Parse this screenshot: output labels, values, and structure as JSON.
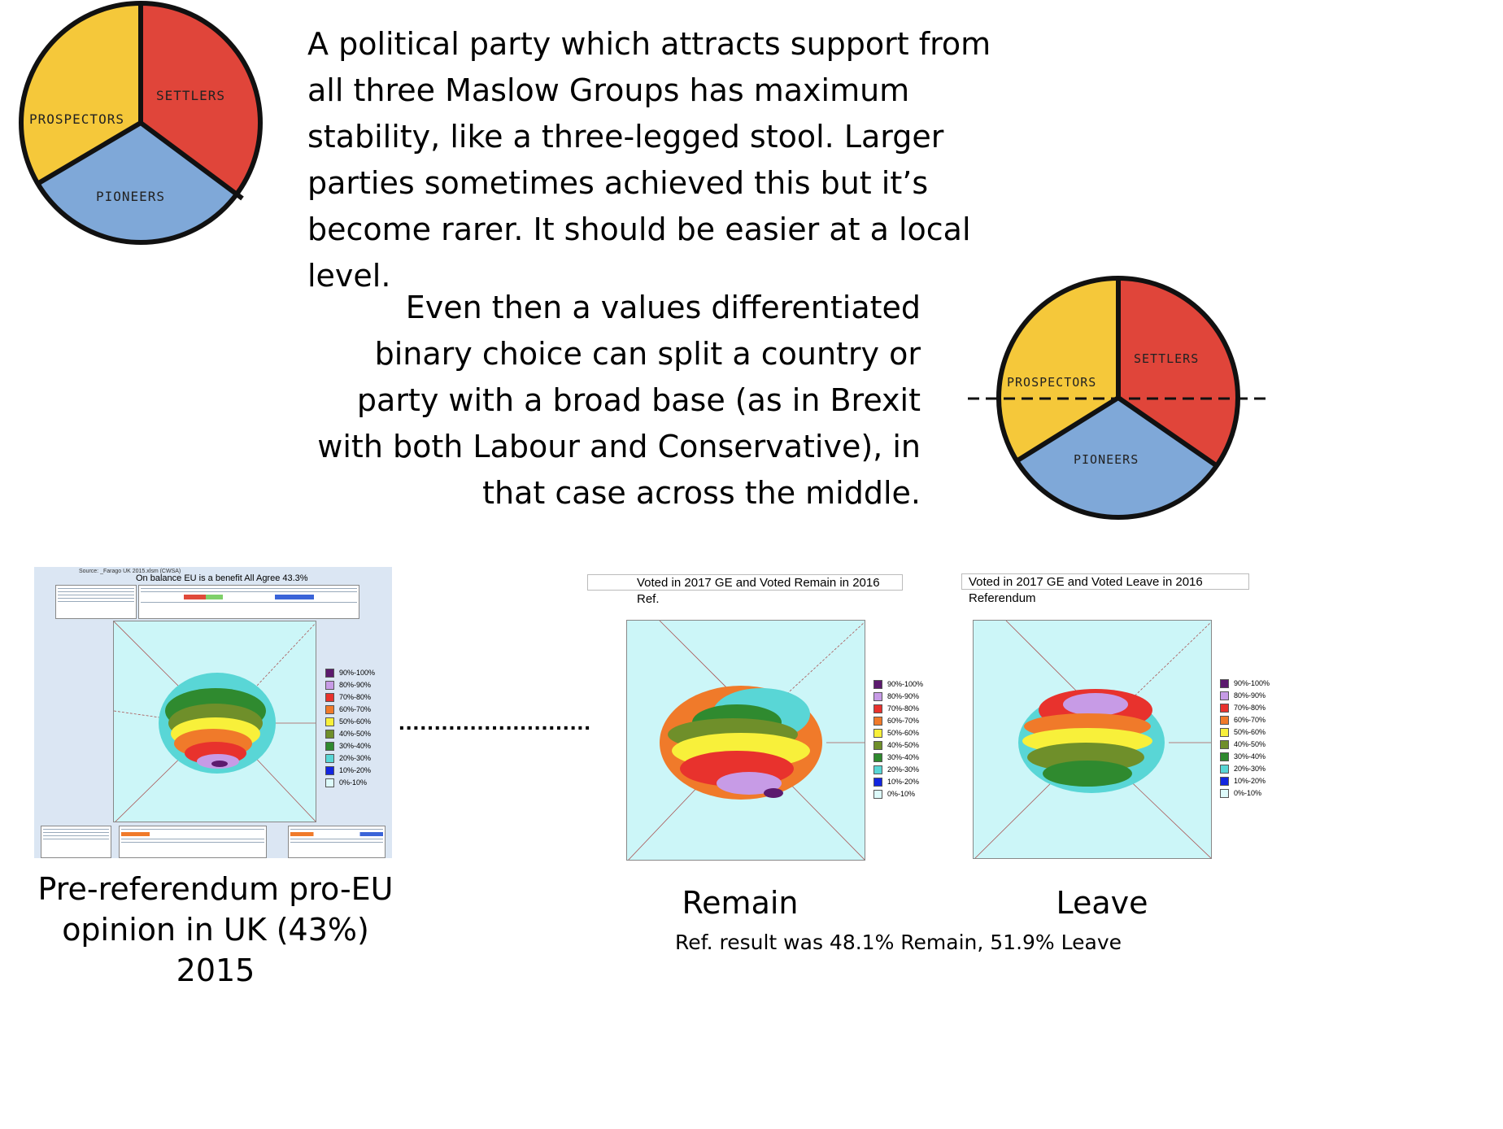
{
  "pie": {
    "labels": {
      "prospectors": "PROSPECTORS",
      "settlers": "SETTLERS",
      "pioneers": "PIONEERS"
    },
    "colors": {
      "prospectors": "#f5c83a",
      "settlers": "#e0453a",
      "pioneers": "#7fa8d8"
    }
  },
  "text": {
    "para1": "A political party which attracts support from all three Maslow Groups has maximum stability, like a three-legged stool.  Larger parties sometimes achieved this but it’s become rarer.  It should be easier at a local level.",
    "para2": "Even then a values differentiated binary choice can split a country or party with a broad base (as in Brexit with both Labour and Conservative), in that case across the middle."
  },
  "panels": {
    "left": {
      "source": "Source: _Farago UK 2015.xlsm (CWSA)",
      "title": "On balance EU is a benefit All Agree 43.3%",
      "caption": "Pre-referendum pro-EU opinion in UK (43%) 2015"
    },
    "remain": {
      "title": "Voted in 2017 GE and Voted Remain in 2016 Ref.",
      "caption": "Remain"
    },
    "leave": {
      "title": "Voted in 2017 GE and Voted Leave in 2016 Referendum",
      "caption": "Leave"
    },
    "result_note": "Ref. result was 48.1% Remain, 51.9% Leave"
  },
  "legend": {
    "items": [
      {
        "label": "90%-100%",
        "color": "#5c1a6e"
      },
      {
        "label": "80%-90%",
        "color": "#c79be6"
      },
      {
        "label": "70%-80%",
        "color": "#e8322d"
      },
      {
        "label": "60%-70%",
        "color": "#f07a2a"
      },
      {
        "label": "50%-60%",
        "color": "#f8f03a"
      },
      {
        "label": "40%-50%",
        "color": "#6f8f2a"
      },
      {
        "label": "30%-40%",
        "color": "#2f8a2f"
      },
      {
        "label": "20%-30%",
        "color": "#59d6d6"
      },
      {
        "label": "10%-20%",
        "color": "#1326e0"
      },
      {
        "label": "0%-10%",
        "color": "#ddfafa"
      }
    ]
  },
  "connector": "..........................."
}
